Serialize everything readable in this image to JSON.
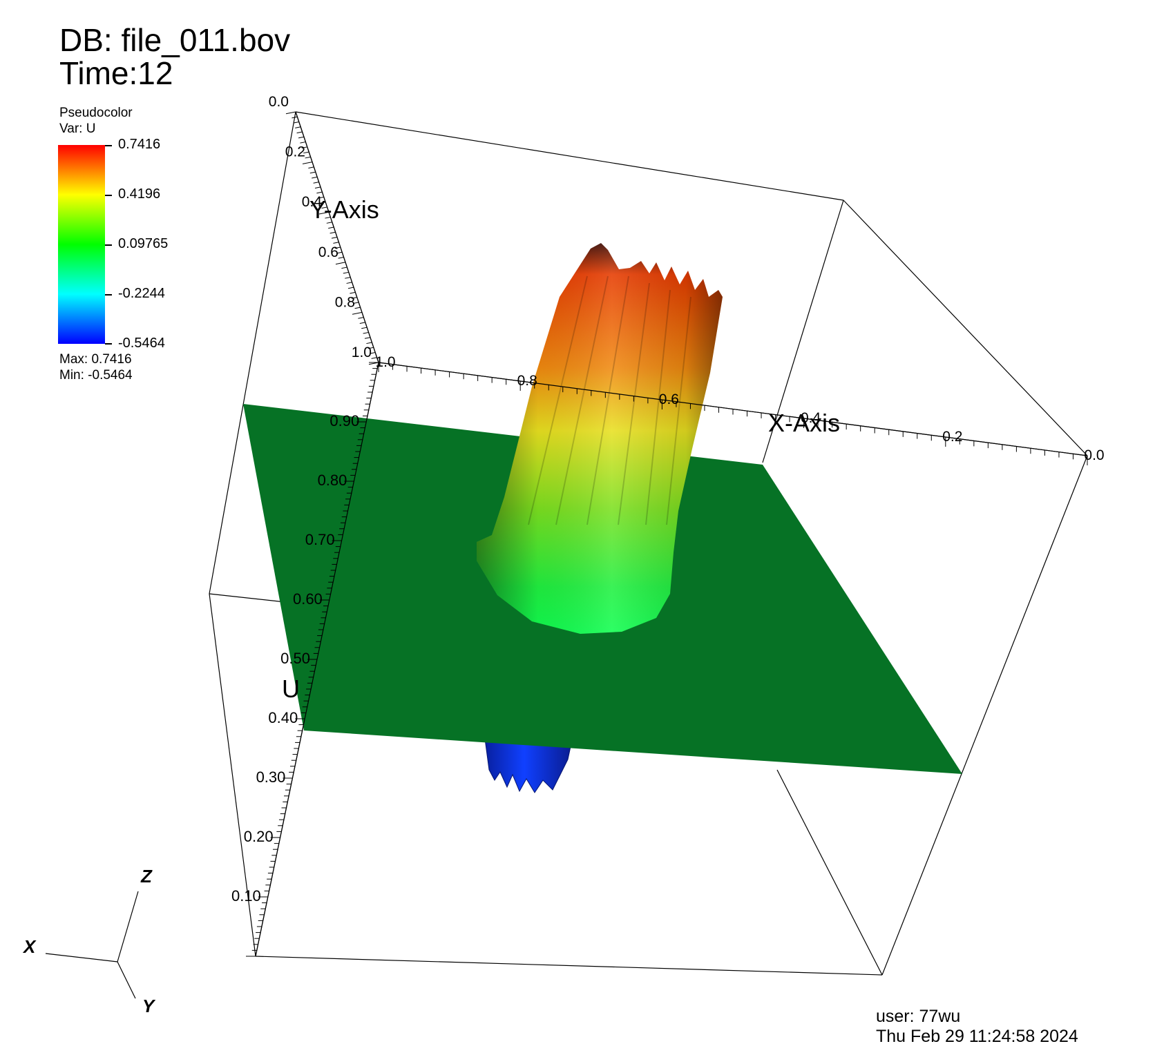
{
  "header": {
    "db_label": "DB: file_011.bov",
    "time_label": "Time:12"
  },
  "legend": {
    "plot_type": "Pseudocolor",
    "variable": "Var: U",
    "ticks": [
      "0.7416",
      "0.4196",
      "0.09765",
      "-0.2244",
      "-0.5464"
    ],
    "max_label": "Max:  0.7416",
    "min_label": "Min: -0.5464",
    "colormap": [
      "#ff0000",
      "#ffff00",
      "#00ff00",
      "#00ffff",
      "#0000ff"
    ]
  },
  "axes": {
    "x_title": "X-Axis",
    "y_title": "Y-Axis",
    "z_title": "U",
    "x_ticks": [
      "1.0",
      "0.8",
      "0.6",
      "0.4",
      "0.2",
      "0.0"
    ],
    "y_ticks": [
      "0.0",
      "0.2",
      "0.4",
      "0.6",
      "0.8",
      "1.0"
    ],
    "z_ticks": [
      "0.10",
      "0.20",
      "0.30",
      "0.40",
      "0.50",
      "0.60",
      "0.70",
      "0.80",
      "0.90"
    ]
  },
  "triad": {
    "x": "X",
    "y": "Y",
    "z": "Z"
  },
  "footer": {
    "user": "user: 77wu",
    "timestamp": "Thu Feb 29 11:24:58 2024"
  },
  "colors": {
    "plane": "#067225",
    "positive_blob_top": "#e63b00",
    "positive_blob_base": "#10ff40",
    "negative_blob": "#1030e0"
  }
}
